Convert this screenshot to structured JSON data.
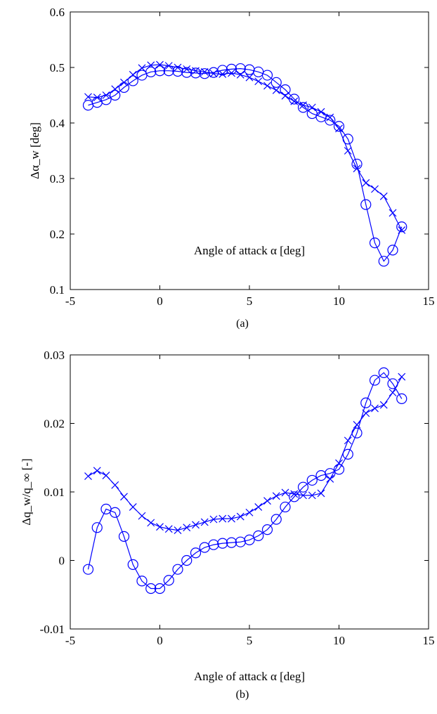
{
  "chart_data": [
    {
      "type": "line",
      "caption": "(a)",
      "xlabel": "Angle of attack α [deg]",
      "ylabel": "Δα_w  [deg]",
      "xlim": [
        -5,
        15
      ],
      "ylim": [
        0.1,
        0.6
      ],
      "xticks": [
        -5,
        0,
        5,
        10,
        15
      ],
      "yticks": [
        0.1,
        0.2,
        0.3,
        0.4,
        0.5,
        0.6
      ],
      "xtick_labels": [
        "-5",
        "0",
        "5",
        "10",
        "15"
      ],
      "ytick_labels": [
        "0.1",
        "0.2",
        "0.3",
        "0.4",
        "0.5",
        "0.6"
      ],
      "grid": false,
      "color": "#0000ff",
      "series": [
        {
          "marker": "circle",
          "x": [
            -4,
            -3.5,
            -3,
            -2.5,
            -2,
            -1.5,
            -1,
            -0.5,
            0,
            0.5,
            1,
            1.5,
            2,
            2.5,
            3,
            3.5,
            4,
            4.5,
            5,
            5.5,
            6,
            6.5,
            7,
            7.5,
            8,
            8.5,
            9,
            9.5,
            10,
            10.5,
            11,
            11.5,
            12,
            12.5,
            13,
            13.5
          ],
          "y": [
            0.432,
            0.437,
            0.442,
            0.45,
            0.464,
            0.476,
            0.486,
            0.492,
            0.494,
            0.494,
            0.493,
            0.491,
            0.49,
            0.489,
            0.491,
            0.495,
            0.497,
            0.498,
            0.496,
            0.492,
            0.486,
            0.473,
            0.46,
            0.443,
            0.428,
            0.417,
            0.411,
            0.405,
            0.394,
            0.371,
            0.326,
            0.253,
            0.184,
            0.151,
            0.171,
            0.213
          ]
        },
        {
          "marker": "x",
          "x": [
            -4,
            -3.5,
            -3,
            -2.5,
            -2,
            -1.5,
            -1,
            -0.5,
            0,
            0.5,
            1,
            1.5,
            2,
            2.5,
            3,
            3.5,
            4,
            4.5,
            5,
            5.5,
            6,
            6.5,
            7,
            7.5,
            8,
            8.5,
            9,
            9.5,
            10,
            10.5,
            11,
            11.5,
            12,
            12.5,
            13,
            13.5
          ],
          "y": [
            0.447,
            0.446,
            0.45,
            0.461,
            0.473,
            0.487,
            0.499,
            0.504,
            0.505,
            0.503,
            0.5,
            0.497,
            0.494,
            0.492,
            0.489,
            0.488,
            0.49,
            0.487,
            0.482,
            0.475,
            0.467,
            0.459,
            0.449,
            0.439,
            0.432,
            0.428,
            0.42,
            0.41,
            0.39,
            0.35,
            0.318,
            0.292,
            0.281,
            0.268,
            0.238,
            0.207
          ]
        }
      ]
    },
    {
      "type": "line",
      "caption": "(b)",
      "xlabel": "Angle of attack α [deg]",
      "ylabel": "Δq_w/q_∞  [-]",
      "xlim": [
        -5,
        15
      ],
      "ylim": [
        -0.01,
        0.03
      ],
      "xticks": [
        -5,
        0,
        5,
        10,
        15
      ],
      "yticks": [
        -0.01,
        0,
        0.01,
        0.02,
        0.03
      ],
      "xtick_labels": [
        "-5",
        "0",
        "5",
        "10",
        "15"
      ],
      "ytick_labels": [
        "-0.01",
        "0",
        "0.01",
        "0.02",
        "0.03"
      ],
      "grid": false,
      "color": "#0000ff",
      "series": [
        {
          "marker": "circle",
          "x": [
            -4,
            -3.5,
            -3,
            -2.5,
            -2,
            -1.5,
            -1,
            -0.5,
            0,
            0.5,
            1,
            1.5,
            2,
            2.5,
            3,
            3.5,
            4,
            4.5,
            5,
            5.5,
            6,
            6.5,
            7,
            7.5,
            8,
            8.5,
            9,
            9.5,
            10,
            10.5,
            11,
            11.5,
            12,
            12.5,
            13,
            13.5
          ],
          "y": [
            -0.0013,
            0.0048,
            0.0075,
            0.007,
            0.0035,
            -0.0006,
            -0.003,
            -0.0041,
            -0.0041,
            -0.0029,
            -0.0013,
            0.0,
            0.0011,
            0.0019,
            0.0023,
            0.0025,
            0.0026,
            0.0027,
            0.003,
            0.0036,
            0.0045,
            0.006,
            0.0078,
            0.0093,
            0.0107,
            0.0117,
            0.0124,
            0.0127,
            0.0133,
            0.0155,
            0.0186,
            0.023,
            0.0263,
            0.0274,
            0.0258,
            0.0236
          ]
        },
        {
          "marker": "x",
          "x": [
            -4,
            -3.5,
            -3,
            -2.5,
            -2,
            -1.5,
            -1,
            -0.5,
            0,
            0.5,
            1,
            1.5,
            2,
            2.5,
            3,
            3.5,
            4,
            4.5,
            5,
            5.5,
            6,
            6.5,
            7,
            7.5,
            8,
            8.5,
            9,
            9.5,
            10,
            10.5,
            11,
            11.5,
            12,
            12.5,
            13,
            13.5
          ],
          "y": [
            0.0123,
            0.0131,
            0.0124,
            0.011,
            0.0093,
            0.0078,
            0.0065,
            0.0055,
            0.0049,
            0.0046,
            0.0044,
            0.0048,
            0.0052,
            0.0056,
            0.006,
            0.0061,
            0.0061,
            0.0064,
            0.007,
            0.0078,
            0.0087,
            0.0094,
            0.0099,
            0.0097,
            0.0095,
            0.0095,
            0.0098,
            0.0119,
            0.0142,
            0.0175,
            0.0198,
            0.0215,
            0.0222,
            0.0227,
            0.0245,
            0.0268
          ]
        }
      ]
    }
  ]
}
